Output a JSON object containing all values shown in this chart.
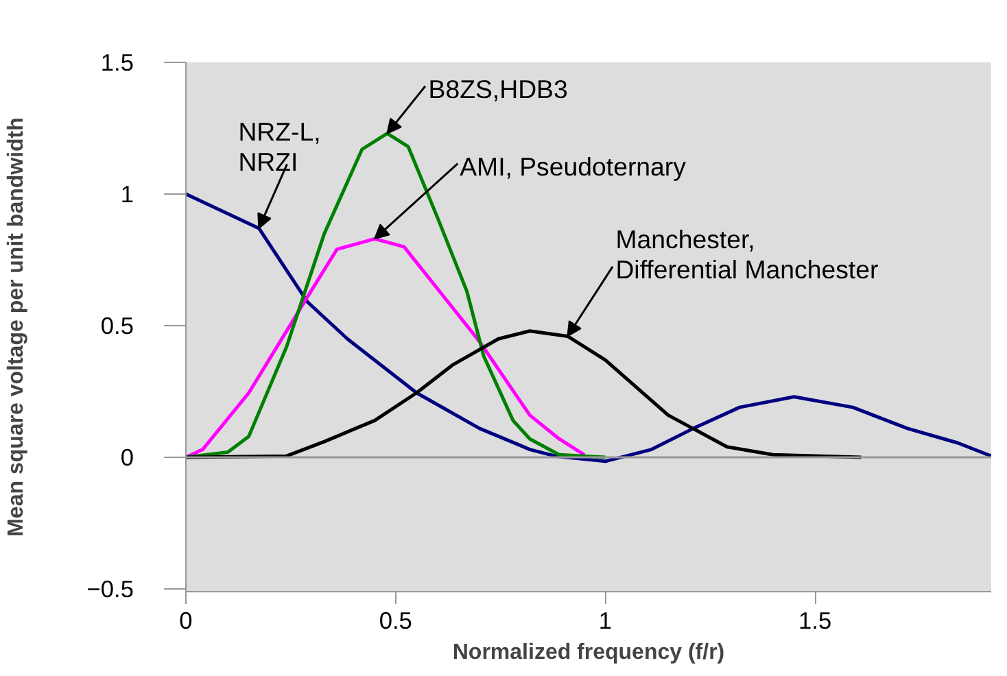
{
  "chart_data": {
    "type": "line",
    "xlabel": "Normalized frequency (f/r)",
    "ylabel": "Mean square voltage per unit bandwidth",
    "xlim": [
      0,
      1.92
    ],
    "ylim": [
      -0.51,
      1.5
    ],
    "xticks": [
      0,
      0.5,
      1,
      1.5
    ],
    "yticks": [
      -0.5,
      0,
      0.5,
      1,
      1.5
    ],
    "grid": false,
    "marker": "none",
    "line_style": "solid",
    "ref_lines": [
      {
        "axis": "y",
        "value": 0,
        "color": "#999999"
      }
    ],
    "series": [
      {
        "color": "#000080",
        "x": [
          0,
          0.174,
          0.29,
          0.385,
          0.55,
          0.7,
          0.82,
          0.88,
          1.0,
          1.11,
          1.21,
          1.32,
          1.45,
          1.59,
          1.72,
          1.84,
          1.92
        ],
        "values": [
          1.0,
          0.87,
          0.59,
          0.45,
          0.245,
          0.11,
          0.03,
          0.005,
          -0.015,
          0.03,
          0.11,
          0.19,
          0.23,
          0.19,
          0.11,
          0.055,
          0.005
        ]
      },
      {
        "color": "#ff00ff",
        "x": [
          0,
          0.04,
          0.15,
          0.29,
          0.36,
          0.45,
          0.52,
          0.625,
          0.7,
          0.82,
          0.89,
          0.95
        ],
        "values": [
          0,
          0.03,
          0.245,
          0.61,
          0.79,
          0.83,
          0.8,
          0.59,
          0.44,
          0.16,
          0.07,
          0.01
        ]
      },
      {
        "color": "#008000",
        "x": [
          0,
          0.1,
          0.15,
          0.24,
          0.33,
          0.42,
          0.48,
          0.53,
          0.6,
          0.67,
          0.71,
          0.78,
          0.82,
          0.89,
          1.0
        ],
        "values": [
          0,
          0.02,
          0.08,
          0.42,
          0.85,
          1.17,
          1.23,
          1.18,
          0.91,
          0.63,
          0.385,
          0.14,
          0.07,
          0.01,
          0.0
        ]
      },
      {
        "color": "#000000",
        "x": [
          0,
          0.24,
          0.33,
          0.45,
          0.55,
          0.635,
          0.745,
          0.82,
          0.91,
          1.0,
          1.15,
          1.29,
          1.4,
          1.61
        ],
        "values": [
          0,
          0.005,
          0.06,
          0.14,
          0.245,
          0.35,
          0.45,
          0.48,
          0.46,
          0.37,
          0.16,
          0.04,
          0.01,
          0.0
        ]
      }
    ],
    "annotations": [
      {
        "text": "NRZ-L,\nNRZI",
        "x": 0.174,
        "y": 0.87
      },
      {
        "text": "B8ZS,HDB3",
        "x": 0.48,
        "y": 1.23
      },
      {
        "text": "AMI, Pseudoternary",
        "x": 0.45,
        "y": 0.83
      },
      {
        "text": "Manchester,\nDifferential Manchester",
        "x": 0.91,
        "y": 0.46
      }
    ]
  }
}
